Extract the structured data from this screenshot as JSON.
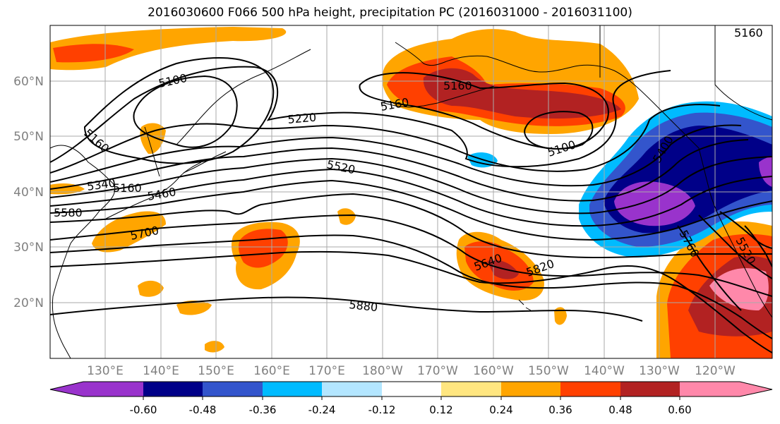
{
  "title": "2016030600 F066 500 hPa height, precipitation PC (2016031000 - 2016031100)",
  "colors": {
    "neg_060": "#9933cc",
    "neg_048": "#000088",
    "neg_036": "#3355cc",
    "neg_024": "#00bbff",
    "neg_012": "#b3e6ff",
    "neutral": "#ffffff",
    "pos_012": "#ffe680",
    "pos_024": "#ffa500",
    "pos_036": "#ff4000",
    "pos_048": "#b22222",
    "pos_060": "#ff88aa",
    "contour": "#000000",
    "coast": "#000000",
    "grid": "#aaaaaa",
    "tick_label": "#808080"
  },
  "lat_labels": [
    "60°N",
    "50°N",
    "40°N",
    "30°N",
    "20°N"
  ],
  "lon_labels": [
    "130°E",
    "140°E",
    "150°E",
    "160°E",
    "170°E",
    "180°W",
    "170°W",
    "160°W",
    "150°W",
    "140°W",
    "130°W",
    "120°W"
  ],
  "contour_labels": [
    "5100",
    "5160",
    "5160",
    "5160",
    "5220",
    "5520",
    "5100",
    "5160",
    "5340",
    "5460",
    "5580",
    "5700",
    "5640",
    "5820",
    "5880",
    "5400",
    "5760",
    "5520",
    "5160"
  ],
  "colorbar": {
    "tick_labels": [
      "-0.60",
      "-0.48",
      "-0.36",
      "-0.24",
      "-0.12",
      "0.12",
      "0.24",
      "0.36",
      "0.48",
      "0.60"
    ]
  }
}
